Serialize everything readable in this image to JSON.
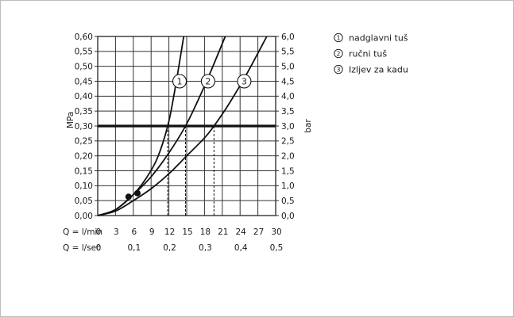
{
  "chart_data": {
    "type": "line",
    "y_left": {
      "label": "MPa",
      "range": [
        0,
        0.6
      ],
      "ticks": [
        "0,00",
        "0,05",
        "0,10",
        "0,15",
        "0,20",
        "0,25",
        "0,30",
        "0,35",
        "0,40",
        "0,45",
        "0,50",
        "0,55",
        "0,60"
      ]
    },
    "y_right": {
      "label": "bar",
      "range": [
        0,
        6
      ],
      "ticks": [
        "0,0",
        "0,5",
        "1,0",
        "1,5",
        "2,0",
        "2,5",
        "3,0",
        "3,5",
        "4,0",
        "4,5",
        "5,0",
        "5,5",
        "6,0"
      ]
    },
    "x_primary": {
      "prefix": "Q = l/min",
      "range": [
        0,
        30
      ],
      "ticks": [
        "0",
        "3",
        "6",
        "9",
        "12",
        "15",
        "18",
        "21",
        "24",
        "27",
        "30"
      ]
    },
    "x_secondary": {
      "prefix": "Q = l/sec",
      "ticks": [
        {
          "value": 0,
          "label": "0"
        },
        {
          "value": 0.1,
          "label": "0,1"
        },
        {
          "value": 0.2,
          "label": "0,2"
        },
        {
          "value": 0.3,
          "label": "0,3"
        },
        {
          "value": 0.4,
          "label": "0,4"
        },
        {
          "value": 0.5,
          "label": "0,5"
        }
      ]
    },
    "grid": true,
    "reference_line": {
      "y": 0.3
    },
    "series": [
      {
        "name": "nadglavni tuš",
        "marker": "1",
        "x": [
          0,
          3,
          6,
          8,
          10,
          11.8,
          13,
          14.5
        ],
        "y": [
          0,
          0.02,
          0.07,
          0.12,
          0.19,
          0.3,
          0.42,
          0.6
        ],
        "reading_x": 11.8,
        "label_at": [
          13.8,
          0.45
        ]
      },
      {
        "name": "ručni tuš",
        "marker": "2",
        "x": [
          0,
          3,
          6,
          9,
          12,
          14.8,
          17,
          19,
          21.5
        ],
        "y": [
          0,
          0.02,
          0.07,
          0.13,
          0.21,
          0.3,
          0.39,
          0.48,
          0.6
        ],
        "reading_x": 14.8,
        "label_at": [
          18.6,
          0.45
        ]
      },
      {
        "name": "Izljev za kadu",
        "marker": "3",
        "x": [
          0,
          3,
          6,
          9,
          12,
          15,
          18,
          19.6,
          22,
          25,
          28.5
        ],
        "y": [
          0,
          0.015,
          0.05,
          0.09,
          0.14,
          0.2,
          0.26,
          0.3,
          0.37,
          0.47,
          0.6
        ],
        "reading_x": 19.6,
        "label_at": [
          24.7,
          0.45
        ]
      }
    ],
    "start_points": [
      {
        "x": 5.2,
        "y": 0.063
      },
      {
        "x": 6.7,
        "y": 0.075
      }
    ]
  }
}
